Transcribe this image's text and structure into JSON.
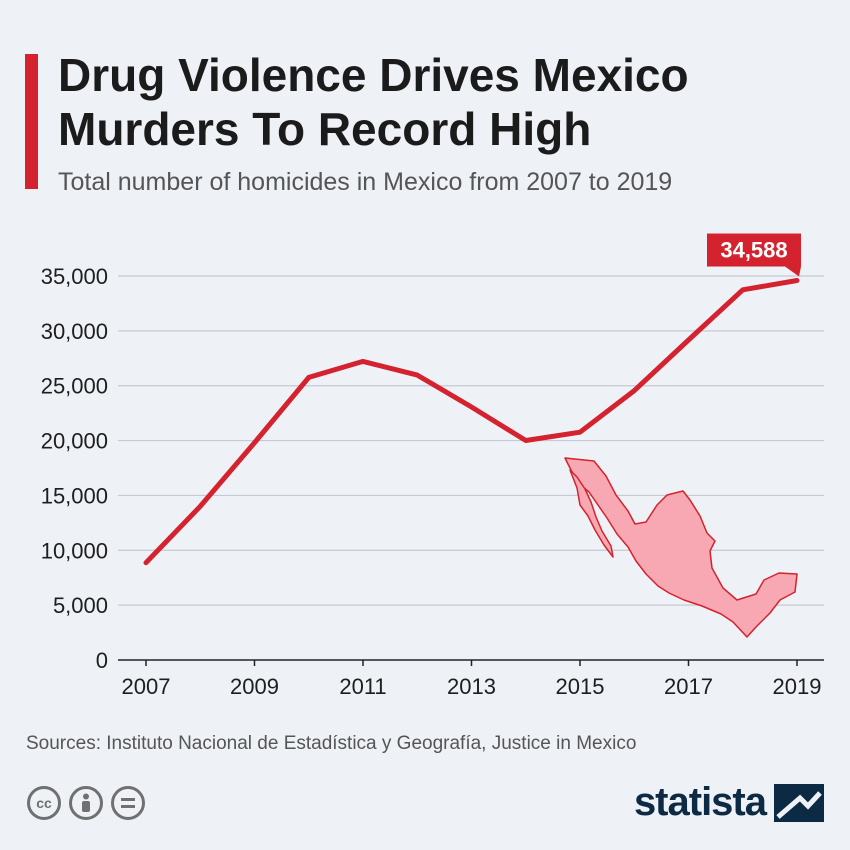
{
  "header": {
    "title": "Drug Violence Drives Mexico Murders To Record High",
    "subtitle": "Total number of homicides in Mexico from 2007 to 2019"
  },
  "chart_data": {
    "type": "line",
    "x": [
      2007,
      2008,
      2009,
      2010,
      2011,
      2012,
      2013,
      2014,
      2015,
      2016,
      2017,
      2018,
      2019
    ],
    "series": [
      {
        "values": [
          8867,
          14006,
          19803,
          25757,
          27213,
          25967,
          23063,
          20010,
          20762,
          24559,
          29168,
          33743,
          34588
        ],
        "color": "#d4232f"
      }
    ],
    "x_tick_labels": [
      "2007",
      "2009",
      "2011",
      "2013",
      "2015",
      "2017",
      "2019"
    ],
    "y_tick_labels": [
      "0",
      "5,000",
      "10,000",
      "15,000",
      "20,000",
      "25,000",
      "30,000",
      "35,000"
    ],
    "ylim": [
      0,
      35000
    ],
    "grid": true,
    "annotation": {
      "label": "34,588",
      "year": 2019
    }
  },
  "footer": {
    "source": "Sources: Instituto Nacional de Estadística y Geografía, Justice in Mexico",
    "brand": "statista",
    "license_icons": [
      "cc-icon",
      "attribution-icon",
      "no-derivatives-icon"
    ]
  },
  "colors": {
    "accent": "#d4232f",
    "map_fill": "#f7a8b2",
    "brand": "#0d2a45"
  }
}
